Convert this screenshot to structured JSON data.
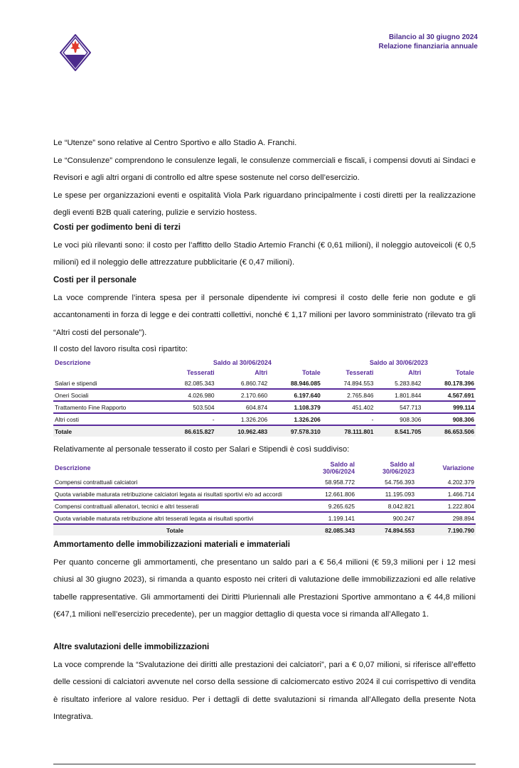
{
  "header": {
    "line1": "Bilancio al 30 giugno 2024",
    "line2": "Relazione finanziaria annuale"
  },
  "intro": [
    "Le “Utenze” sono relative al Centro Sportivo e allo Stadio A. Franchi.",
    "Le “Consulenze” comprendono le consulenze legali, le consulenze commerciali e fiscali, i compensi dovuti ai Sindaci e Revisori e agli altri organi di controllo ed altre spese sostenute nel corso dell’esercizio.",
    "Le spese per organizzazioni eventi e ospitalità Viola Park riguardano principalmente i costi diretti per la realizzazione degli eventi B2B quali catering, pulizie e servizio hostess."
  ],
  "s1": {
    "title": "Costi per godimento beni di terzi",
    "text": "Le voci più rilevanti sono: il costo per l’affitto dello Stadio Artemio Franchi (€ 0,61 milioni), il noleggio autoveicoli (€ 0,5 milioni) ed il noleggio delle attrezzature pubblicitarie (€ 0,47 milioni)."
  },
  "s2": {
    "title": "Costi per il personale",
    "text": "La voce comprende l’intera spesa per il personale dipendente ivi compresi il costo delle ferie non godute e gli accantonamenti in forza di legge e dei contratti collettivi, nonché € 1,17 milioni per lavoro somministrato (rilevato tra gli “Altri costi del personale”).",
    "text2": "Il costo del lavoro risulta così ripartito:"
  },
  "t1": {
    "desc": "Descrizione",
    "g1": "Saldo al 30/06/2024",
    "g2": "Saldo al 30/06/2023",
    "cols": [
      "Tesserati",
      "Altri",
      "Totale",
      "Tesserati",
      "Altri",
      "Totale"
    ],
    "rows": [
      [
        "Salari e stipendi",
        "82.085.343",
        "6.860.742",
        "88.946.085",
        "74.894.553",
        "5.283.842",
        "80.178.396"
      ],
      [
        "Oneri Sociali",
        "4.026.980",
        "2.170.660",
        "6.197.640",
        "2.765.846",
        "1.801.844",
        "4.567.691"
      ],
      [
        "Trattamento Fine Rapporto",
        "503.504",
        "604.874",
        "1.108.379",
        "451.402",
        "547.713",
        "999.114"
      ],
      [
        "Altri costi",
        "-",
        "1.326.206",
        "1.326.206",
        "-",
        "908.306",
        "908.306"
      ]
    ],
    "total": [
      "Totale",
      "86.615.827",
      "10.962.483",
      "97.578.310",
      "78.111.801",
      "8.541.705",
      "86.653.506"
    ]
  },
  "s3": {
    "text": "Relativamente al personale tesserato il costo per Salari e Stipendi è così suddiviso:"
  },
  "t2": {
    "cols": [
      "Descrizione",
      "Saldo al 30/06/2024",
      "Saldo al 30/06/2023",
      "Variazione"
    ],
    "rows": [
      [
        "Compensi contrattuali calciatori",
        "58.958.772",
        "54.756.393",
        "4.202.379"
      ],
      [
        "Quota variabile maturata retribuzione calciatori legata ai risultati sportivi e/o ad accordi",
        "12.661.806",
        "11.195.093",
        "1.466.714"
      ],
      [
        "Compensi contrattuali allenatori, tecnici e altri tesserati",
        "9.265.625",
        "8.042.821",
        "1.222.804"
      ],
      [
        "Quota variabile maturata retribuzione altri tesserati legata ai risultati sportivi",
        "1.199.141",
        "900.247",
        "298.894"
      ]
    ],
    "total": [
      "Totale",
      "82.085.343",
      "74.894.553",
      "7.190.790"
    ]
  },
  "s4": {
    "title": "Ammortamento delle immobilizzazioni materiali e immateriali",
    "text": "Per quanto concerne gli ammortamenti, che presentano un saldo pari a € 56,4 milioni (€ 59,3 milioni per i 12 mesi chiusi al 30 giugno 2023), si rimanda a quanto esposto nei criteri di valutazione delle immobilizzazioni ed alle relative tabelle rappresentative. Gli ammortamenti dei Diritti Pluriennali alle Prestazioni Sportive ammontano a € 44,8 milioni (€47,1 milioni nell’esercizio precedente), per un maggior dettaglio di questa voce si rimanda all’Allegato 1."
  },
  "s5": {
    "title": "Altre svalutazioni delle immobilizzazioni",
    "text": "La voce comprende la “Svalutazione dei diritti alle prestazioni dei calciatori”, pari a € 0,07 milioni, si riferisce all’effetto delle cessioni di calciatori avvenute nel corso della sessione di calciomercato estivo 2024 il cui corrispettivo di vendita è risultato inferiore al valore residuo. Per i dettagli di dette svalutazioni si rimanda all’Allegato della presente Nota Integrativa."
  }
}
